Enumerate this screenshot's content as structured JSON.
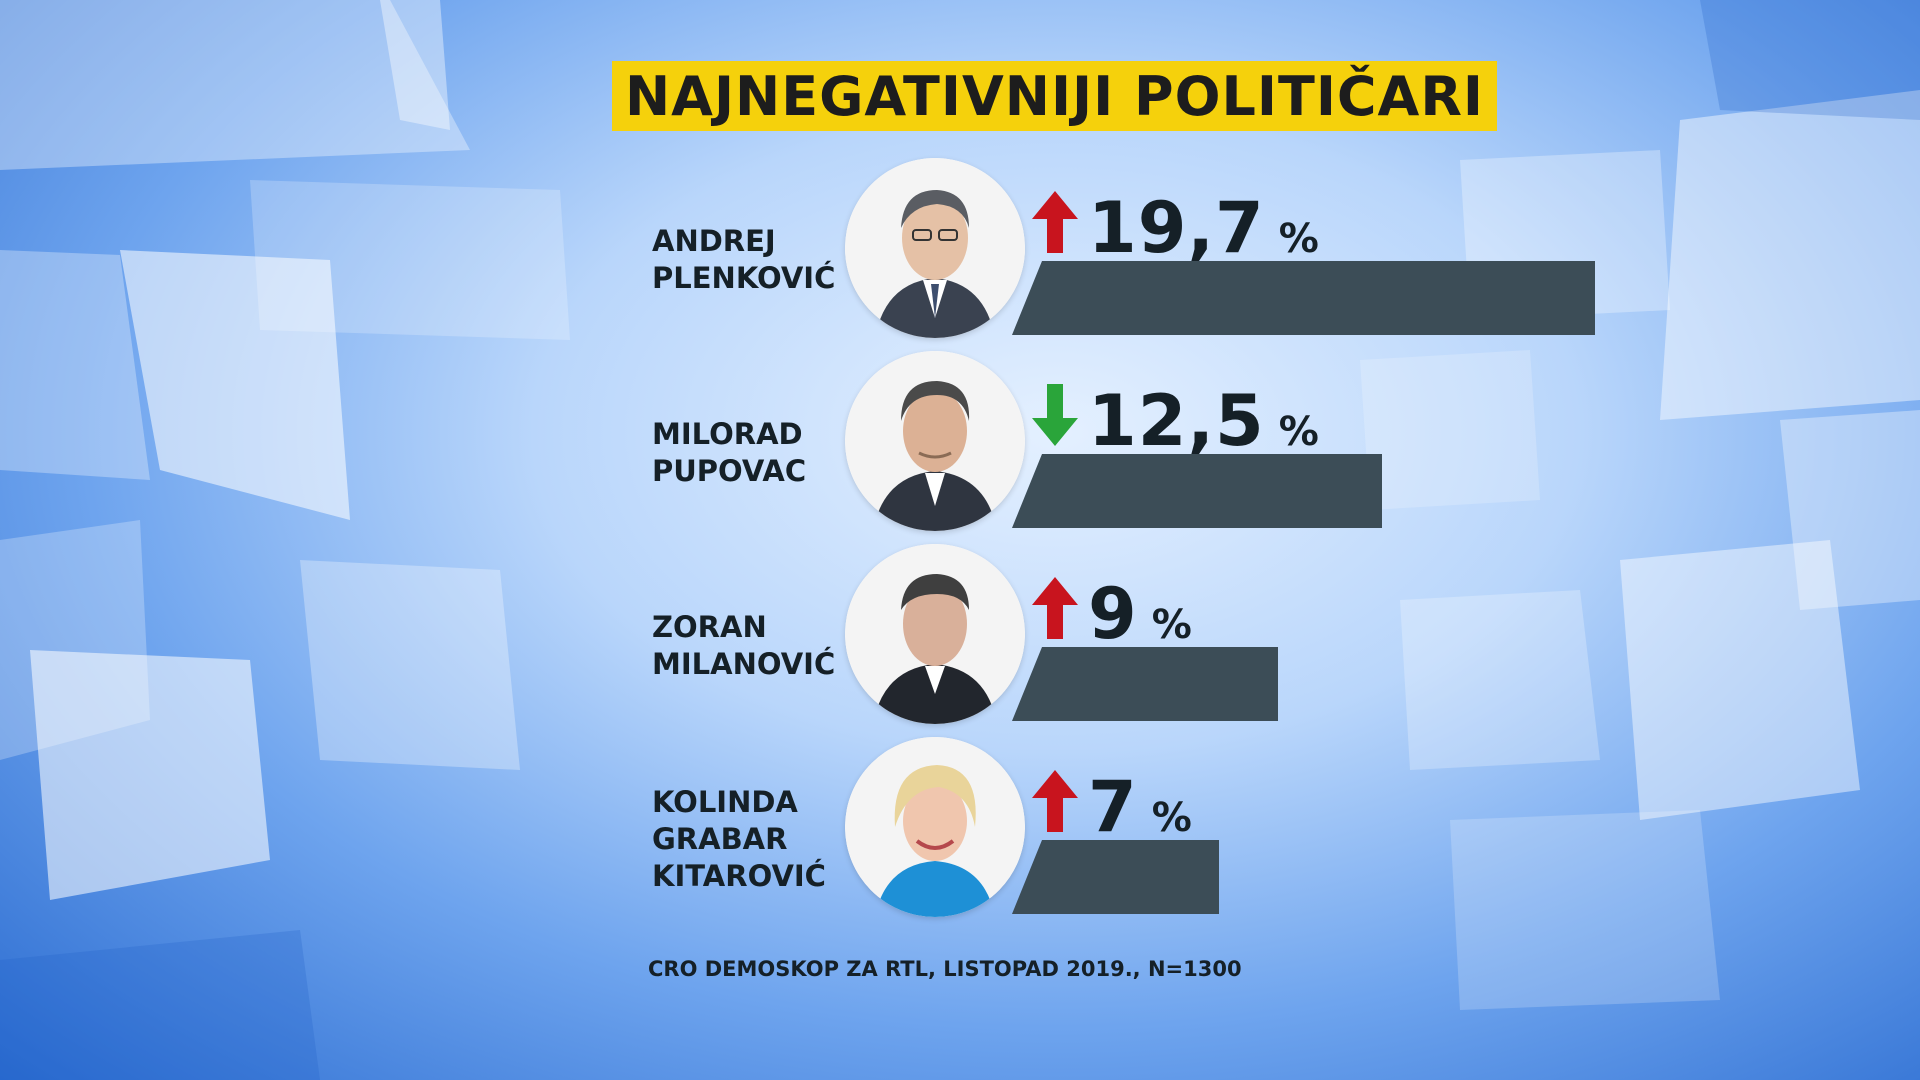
{
  "title": "NAJNEGATIVNIJI POLITIČARI",
  "source": "CRO DEMOSKOP ZA RTL, LISTOPAD 2019., N=1300",
  "colors": {
    "title_bg": "#f5d10c",
    "bar": "#3c4d57",
    "arrow_up": "#c8141e",
    "arrow_down": "#2aa53a",
    "text": "#152027"
  },
  "chart_data": {
    "type": "bar",
    "orientation": "horizontal",
    "title": "NAJNEGATIVNIJI POLITIČARI",
    "categories": [
      "ANDREJ PLENKOVIĆ",
      "MILORAD PUPOVAC",
      "ZORAN MILANOVIĆ",
      "KOLINDA GRABAR KITAROVIĆ"
    ],
    "values": [
      19.7,
      12.5,
      9,
      7
    ],
    "unit": "%",
    "trend": [
      "up",
      "down",
      "up",
      "up"
    ],
    "xlim": [
      0,
      19.7
    ],
    "grid": false
  },
  "rows": [
    {
      "name_lines": [
        "ANDREJ",
        "PLENKOVIĆ"
      ],
      "value_text": "19,7",
      "pct": "%",
      "trend": "up",
      "photo_icon": "politician-portrait-icon"
    },
    {
      "name_lines": [
        "MILORAD",
        "PUPOVAC"
      ],
      "value_text": "12,5",
      "pct": "%",
      "trend": "down",
      "photo_icon": "politician-portrait-icon"
    },
    {
      "name_lines": [
        "ZORAN",
        "MILANOVIĆ"
      ],
      "value_text": "9",
      "pct": "%",
      "trend": "up",
      "photo_icon": "politician-portrait-icon"
    },
    {
      "name_lines": [
        "KOLINDA",
        "GRABAR",
        "KITAROVIĆ"
      ],
      "value_text": "7",
      "pct": "%",
      "trend": "up",
      "photo_icon": "politician-portrait-icon"
    }
  ]
}
